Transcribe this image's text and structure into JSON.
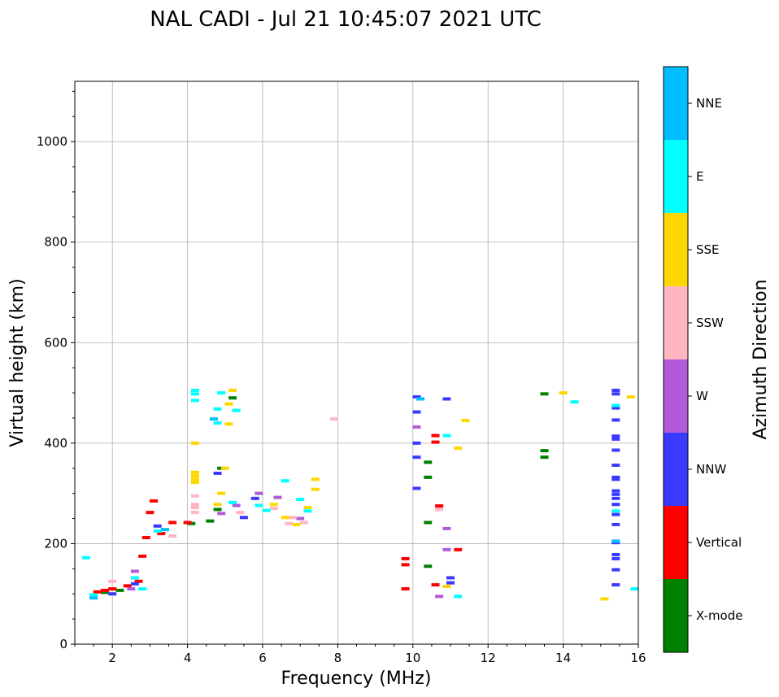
{
  "chart_data": {
    "type": "scatter",
    "title": "NAL CADI - Jul 21 10:45:07 2021 UTC",
    "xlabel": "Frequency (MHz)",
    "ylabel": "Virtual height (km)",
    "xlim": [
      1,
      16
    ],
    "ylim": [
      0,
      1120
    ],
    "xticks": [
      2,
      4,
      6,
      8,
      10,
      12,
      14,
      16
    ],
    "yticks": [
      0,
      200,
      400,
      600,
      800,
      1000
    ],
    "grid": true,
    "colorbar": {
      "label": "Azimuth Direction",
      "categories": [
        "X-mode",
        "Vertical",
        "NNW",
        "W",
        "SSW",
        "SSE",
        "E",
        "NNE"
      ],
      "colors": [
        "#008000",
        "#ff0000",
        "#3a3aff",
        "#b15bd8",
        "#ffb6c1",
        "#ffd700",
        "#00ffff",
        "#00bfff"
      ]
    },
    "series": [
      {
        "name": "X-mode",
        "points": [
          [
            1.8,
            103
          ],
          [
            2.2,
            107
          ],
          [
            4.1,
            240
          ],
          [
            4.6,
            245
          ],
          [
            4.8,
            268
          ],
          [
            4.9,
            350
          ],
          [
            5.2,
            490
          ],
          [
            10.4,
            155
          ],
          [
            10.4,
            362
          ],
          [
            10.4,
            242
          ],
          [
            10.4,
            332
          ],
          [
            13.5,
            385
          ],
          [
            13.5,
            372
          ],
          [
            13.5,
            498
          ]
        ]
      },
      {
        "name": "Vertical",
        "points": [
          [
            1.6,
            104
          ],
          [
            1.8,
            107
          ],
          [
            2.0,
            110
          ],
          [
            2.4,
            116
          ],
          [
            2.7,
            125
          ],
          [
            2.8,
            175
          ],
          [
            2.9,
            212
          ],
          [
            3.0,
            262
          ],
          [
            3.1,
            285
          ],
          [
            3.3,
            220
          ],
          [
            3.6,
            242
          ],
          [
            4.0,
            242
          ],
          [
            9.8,
            110
          ],
          [
            9.8,
            170
          ],
          [
            9.8,
            158
          ],
          [
            10.6,
            118
          ],
          [
            10.6,
            415
          ],
          [
            10.6,
            402
          ],
          [
            10.7,
            275
          ],
          [
            11.2,
            188
          ]
        ]
      },
      {
        "name": "NNW",
        "points": [
          [
            2.0,
            100
          ],
          [
            2.6,
            120
          ],
          [
            3.2,
            235
          ],
          [
            4.8,
            340
          ],
          [
            5.5,
            252
          ],
          [
            5.8,
            290
          ],
          [
            10.1,
            492
          ],
          [
            10.1,
            462
          ],
          [
            10.1,
            400
          ],
          [
            10.1,
            372
          ],
          [
            10.1,
            310
          ],
          [
            10.9,
            488
          ],
          [
            11.0,
            132
          ],
          [
            11.0,
            122
          ],
          [
            15.4,
            505
          ],
          [
            15.4,
            498
          ],
          [
            15.4,
            470
          ],
          [
            15.4,
            446
          ],
          [
            15.4,
            414
          ],
          [
            15.4,
            408
          ],
          [
            15.4,
            386
          ],
          [
            15.4,
            356
          ],
          [
            15.4,
            332
          ],
          [
            15.4,
            328
          ],
          [
            15.4,
            305
          ],
          [
            15.4,
            298
          ],
          [
            15.4,
            290
          ],
          [
            15.4,
            278
          ],
          [
            15.4,
            258
          ],
          [
            15.4,
            238
          ],
          [
            15.4,
            202
          ],
          [
            15.4,
            178
          ],
          [
            15.4,
            170
          ],
          [
            15.4,
            148
          ],
          [
            15.4,
            118
          ]
        ]
      },
      {
        "name": "W",
        "points": [
          [
            2.5,
            110
          ],
          [
            2.6,
            145
          ],
          [
            4.9,
            260
          ],
          [
            5.3,
            276
          ],
          [
            5.9,
            300
          ],
          [
            6.4,
            292
          ],
          [
            7.0,
            250
          ],
          [
            10.1,
            432
          ],
          [
            10.9,
            230
          ],
          [
            10.9,
            188
          ],
          [
            10.7,
            95
          ]
        ]
      },
      {
        "name": "SSW",
        "points": [
          [
            2.0,
            125
          ],
          [
            3.6,
            215
          ],
          [
            4.2,
            295
          ],
          [
            4.2,
            278
          ],
          [
            4.2,
            272
          ],
          [
            4.2,
            262
          ],
          [
            5.4,
            262
          ],
          [
            6.3,
            270
          ],
          [
            6.7,
            240
          ],
          [
            6.8,
            252
          ],
          [
            7.1,
            242
          ],
          [
            7.9,
            448
          ],
          [
            10.7,
            268
          ]
        ]
      },
      {
        "name": "SSE",
        "points": [
          [
            4.2,
            400
          ],
          [
            4.2,
            342
          ],
          [
            4.2,
            335
          ],
          [
            4.2,
            328
          ],
          [
            4.2,
            322
          ],
          [
            4.8,
            278
          ],
          [
            4.9,
            300
          ],
          [
            5.0,
            350
          ],
          [
            5.1,
            438
          ],
          [
            5.1,
            478
          ],
          [
            5.2,
            505
          ],
          [
            6.3,
            278
          ],
          [
            6.6,
            252
          ],
          [
            6.9,
            238
          ],
          [
            7.2,
            272
          ],
          [
            7.4,
            328
          ],
          [
            7.4,
            308
          ],
          [
            10.9,
            115
          ],
          [
            11.2,
            390
          ],
          [
            11.4,
            445
          ],
          [
            14.0,
            500
          ],
          [
            15.1,
            90
          ],
          [
            15.8,
            492
          ]
        ]
      },
      {
        "name": "E",
        "points": [
          [
            1.3,
            172
          ],
          [
            1.5,
            98
          ],
          [
            2.6,
            132
          ],
          [
            2.8,
            110
          ],
          [
            3.2,
            225
          ],
          [
            4.2,
            505
          ],
          [
            4.2,
            498
          ],
          [
            4.2,
            485
          ],
          [
            4.8,
            468
          ],
          [
            4.8,
            440
          ],
          [
            4.9,
            500
          ],
          [
            5.2,
            282
          ],
          [
            5.3,
            465
          ],
          [
            5.9,
            276
          ],
          [
            6.1,
            266
          ],
          [
            6.6,
            325
          ],
          [
            7.0,
            288
          ],
          [
            7.2,
            265
          ],
          [
            10.9,
            415
          ],
          [
            11.2,
            95
          ],
          [
            14.3,
            482
          ],
          [
            15.4,
            475
          ],
          [
            15.4,
            265
          ],
          [
            15.9,
            110
          ]
        ]
      },
      {
        "name": "NNE",
        "points": [
          [
            1.5,
            92
          ],
          [
            3.4,
            228
          ],
          [
            4.7,
            448
          ],
          [
            10.2,
            488
          ],
          [
            15.4,
            205
          ]
        ]
      }
    ]
  }
}
